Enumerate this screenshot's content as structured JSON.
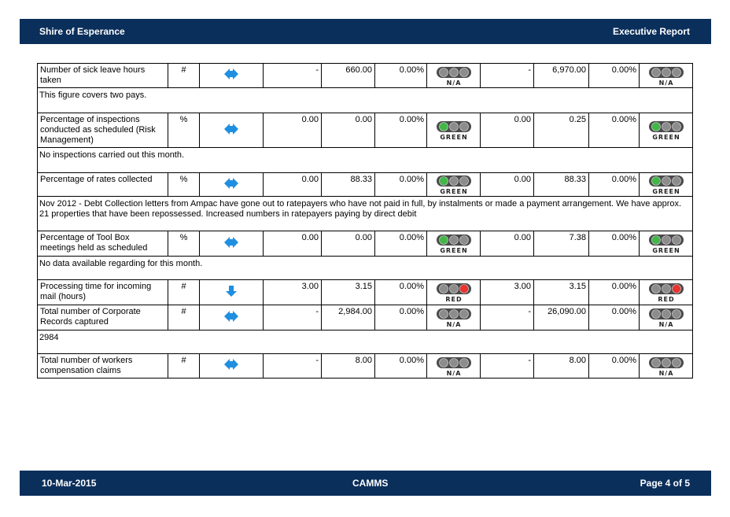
{
  "header": {
    "title": "Shire of Esperance",
    "report": "Executive Report"
  },
  "table": {
    "rows": [
      {
        "measure": "Number of sick leave hours taken",
        "unit": "#",
        "cells": [
          "-",
          "660.00",
          "0.00%",
          "N/A",
          "-",
          "6,970.00",
          "0.00%",
          "N/A"
        ],
        "comment": "This figure covers two pays."
      },
      {
        "measure": "Percentage of inspections conducted as scheduled (Risk Management)",
        "unit": "%",
        "cells": [
          "0.00",
          "0.00",
          "0.00%",
          "GREEN",
          "0.00",
          "0.25",
          "0.00%",
          "GREEN"
        ],
        "comment": "No inspections carried out this month."
      },
      {
        "measure": "Percentage of rates collected",
        "unit": "%",
        "cells": [
          "0.00",
          "88.33",
          "0.00%",
          "GREEN",
          "0.00",
          "88.33",
          "0.00%",
          "GREEN"
        ],
        "comment": "Nov 2012 - Debt Collection letters from Ampac have gone out to ratepayers who have not paid in full, by instalments or made a payment arrangement. We have approx. 21 properties that have been repossessed. Increased numbers in ratepayers paying by direct debit"
      },
      {
        "measure": "Percentage of Tool Box meetings held as scheduled",
        "unit": "%",
        "cells": [
          "0.00",
          "0.00",
          "0.00%",
          "GREEN",
          "0.00",
          "7.38",
          "0.00%",
          "GREEN"
        ],
        "comment": "No data available regarding for this month."
      },
      {
        "measure": "Processing time for incoming mail (hours)",
        "unit": "#",
        "cells": [
          "3.00",
          "3.15",
          "0.00%",
          "RED",
          "3.00",
          "3.15",
          "0.00%",
          "RED"
        ]
      },
      {
        "measure": "Total number of Corporate Records captured",
        "unit": "#",
        "cells": [
          "-",
          "2,984.00",
          "0.00%",
          "N/A",
          "-",
          "26,090.00",
          "0.00%",
          "N/A"
        ],
        "comment": "2984"
      },
      {
        "measure": "Total number of workers compensation claims",
        "unit": "#",
        "cells": [
          "-",
          "8.00",
          "0.00%",
          "N/A",
          "-",
          "8.00",
          "0.00%",
          "N/A"
        ]
      }
    ]
  },
  "footer": {
    "date": "10-Mar-2015",
    "center": "CAMMS",
    "page": "Page 4 of 5"
  }
}
